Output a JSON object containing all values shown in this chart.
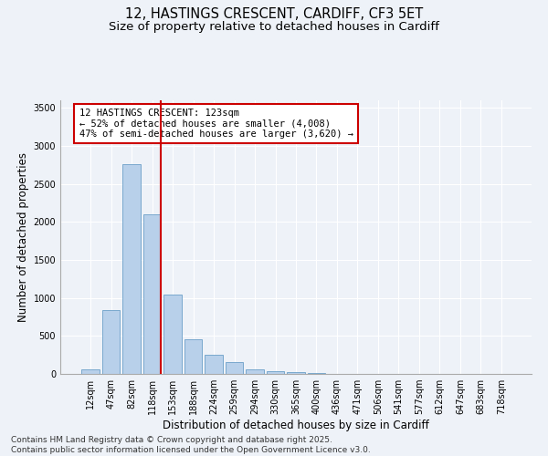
{
  "title_line1": "12, HASTINGS CRESCENT, CARDIFF, CF3 5ET",
  "title_line2": "Size of property relative to detached houses in Cardiff",
  "xlabel": "Distribution of detached houses by size in Cardiff",
  "ylabel": "Number of detached properties",
  "categories": [
    "12sqm",
    "47sqm",
    "82sqm",
    "118sqm",
    "153sqm",
    "188sqm",
    "224sqm",
    "259sqm",
    "294sqm",
    "330sqm",
    "365sqm",
    "400sqm",
    "436sqm",
    "471sqm",
    "506sqm",
    "541sqm",
    "577sqm",
    "612sqm",
    "647sqm",
    "683sqm",
    "718sqm"
  ],
  "values": [
    55,
    840,
    2760,
    2100,
    1040,
    455,
    250,
    155,
    65,
    40,
    20,
    10,
    5,
    2,
    1,
    0,
    0,
    0,
    0,
    0,
    0
  ],
  "bar_color": "#b8d0ea",
  "bar_edge_color": "#6a9fc8",
  "vline_color": "#cc0000",
  "vline_index": 3,
  "annotation_text": "12 HASTINGS CRESCENT: 123sqm\n← 52% of detached houses are smaller (4,008)\n47% of semi-detached houses are larger (3,620) →",
  "annotation_box_facecolor": "#ffffff",
  "annotation_box_edgecolor": "#cc0000",
  "ylim": [
    0,
    3600
  ],
  "yticks": [
    0,
    500,
    1000,
    1500,
    2000,
    2500,
    3000,
    3500
  ],
  "background_color": "#eef2f8",
  "grid_color": "#ffffff",
  "footer_line1": "Contains HM Land Registry data © Crown copyright and database right 2025.",
  "footer_line2": "Contains public sector information licensed under the Open Government Licence v3.0.",
  "title_fontsize": 10.5,
  "subtitle_fontsize": 9.5,
  "axis_label_fontsize": 8.5,
  "tick_fontsize": 7,
  "annotation_fontsize": 7.5,
  "footer_fontsize": 6.5
}
